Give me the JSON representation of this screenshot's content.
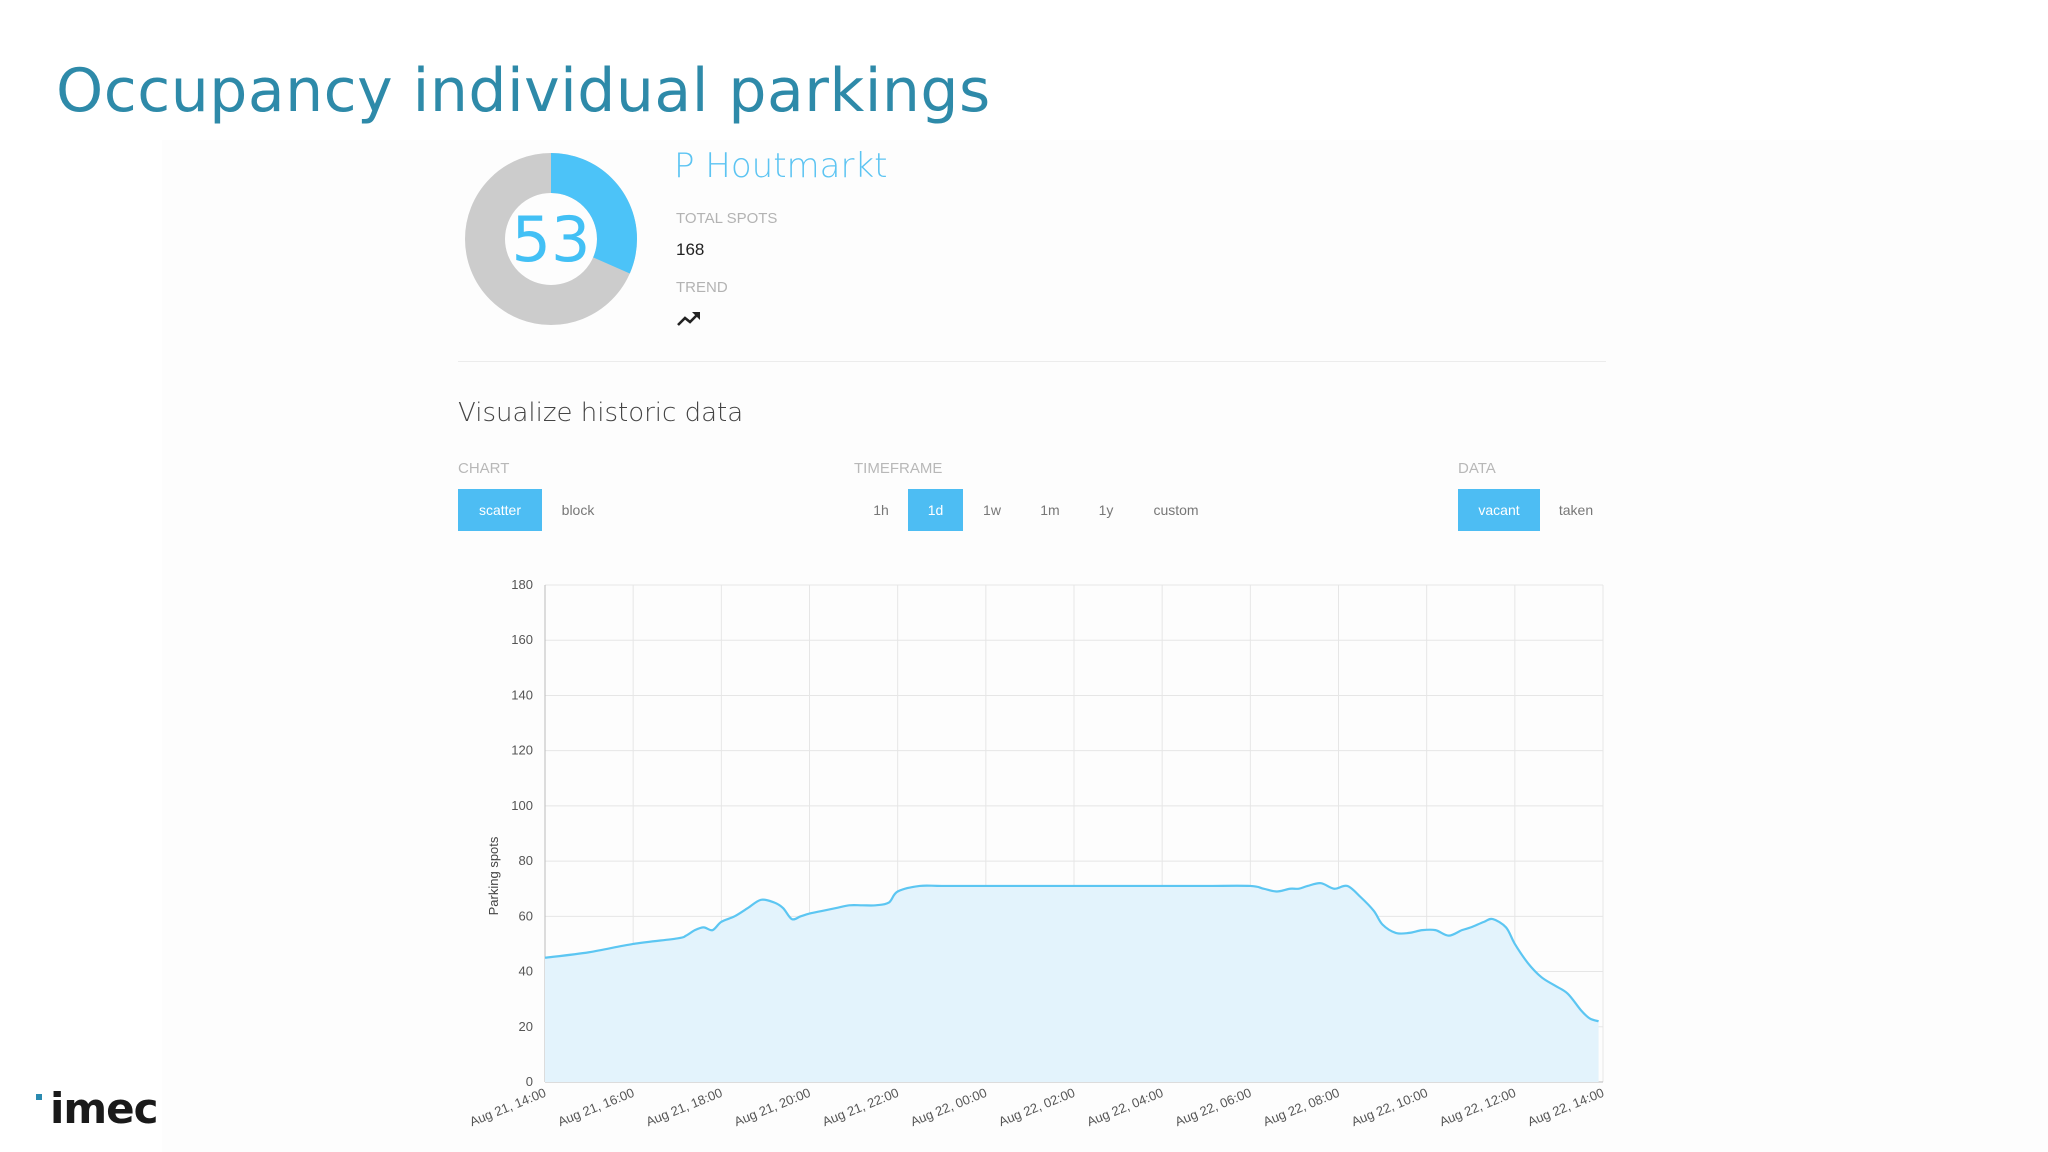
{
  "slide": {
    "title": "Occupancy individual parkings"
  },
  "brand": {
    "logo_text": "imec"
  },
  "summary": {
    "value": "53",
    "lot_name": "P Houtmarkt",
    "total_label": "TOTAL SPOTS",
    "total_value": "168",
    "trend_label": "TREND",
    "trend_icon": "trending-up-icon",
    "donut_fraction": 0.3155,
    "accent_color": "#4cc3f8",
    "rest_color": "#cccccc"
  },
  "historic": {
    "title": "Visualize historic data",
    "chart_group_label": "CHART",
    "chart_options": [
      "scatter",
      "block"
    ],
    "chart_selected": "scatter",
    "timeframe_label": "TIMEFRAME",
    "timeframe_options": [
      "1h",
      "1d",
      "1w",
      "1m",
      "1y",
      "custom"
    ],
    "timeframe_selected": "1d",
    "data_label": "DATA",
    "data_options": [
      "vacant",
      "taken"
    ],
    "data_selected": "vacant"
  },
  "chart_data": {
    "type": "area",
    "xlabel": "",
    "ylabel": "Parking spots",
    "ylim": [
      0,
      180
    ],
    "yticks": [
      0,
      20,
      40,
      60,
      80,
      100,
      120,
      140,
      160,
      180
    ],
    "xticks": [
      "Aug 21, 14:00",
      "Aug 21, 16:00",
      "Aug 21, 18:00",
      "Aug 21, 20:00",
      "Aug 21, 22:00",
      "Aug 22, 00:00",
      "Aug 22, 02:00",
      "Aug 22, 04:00",
      "Aug 22, 06:00",
      "Aug 22, 08:00",
      "Aug 22, 10:00",
      "Aug 22, 12:00",
      "Aug 22, 14:00"
    ],
    "grid": true,
    "line_color": "#5cc6f2",
    "fill_color": "#e3f3fc",
    "series": [
      {
        "x_hours": [
          0,
          1,
          2,
          3,
          3.2,
          3.4,
          3.6,
          3.8,
          4,
          4.3,
          4.6,
          4.9,
          5.2,
          5.4,
          5.6,
          5.8,
          6,
          6.3,
          6.6,
          6.9,
          7.2,
          7.5,
          7.8,
          8,
          8.5,
          9,
          10,
          11,
          12,
          13,
          14,
          15,
          16,
          16.3,
          16.6,
          16.9,
          17.1,
          17.3,
          17.6,
          17.9,
          18.2,
          18.5,
          18.8,
          19,
          19.3,
          19.6,
          19.9,
          20.2,
          20.5,
          20.8,
          21,
          21.3,
          21.5,
          21.8,
          22,
          22.3,
          22.6,
          22.9,
          23.2,
          23.5,
          23.7,
          23.9
        ],
        "values": [
          45,
          47,
          50,
          52,
          53,
          55,
          56,
          55,
          58,
          60,
          63,
          66,
          65,
          63,
          59,
          60,
          61,
          62,
          63,
          64,
          64,
          64,
          65,
          69,
          71,
          71,
          71,
          71,
          71,
          71,
          71,
          71,
          71,
          70,
          69,
          70,
          70,
          71,
          72,
          70,
          71,
          67,
          62,
          57,
          54,
          54,
          55,
          55,
          53,
          55,
          56,
          58,
          59,
          56,
          50,
          43,
          38,
          35,
          32,
          26,
          23,
          22
        ]
      }
    ]
  }
}
